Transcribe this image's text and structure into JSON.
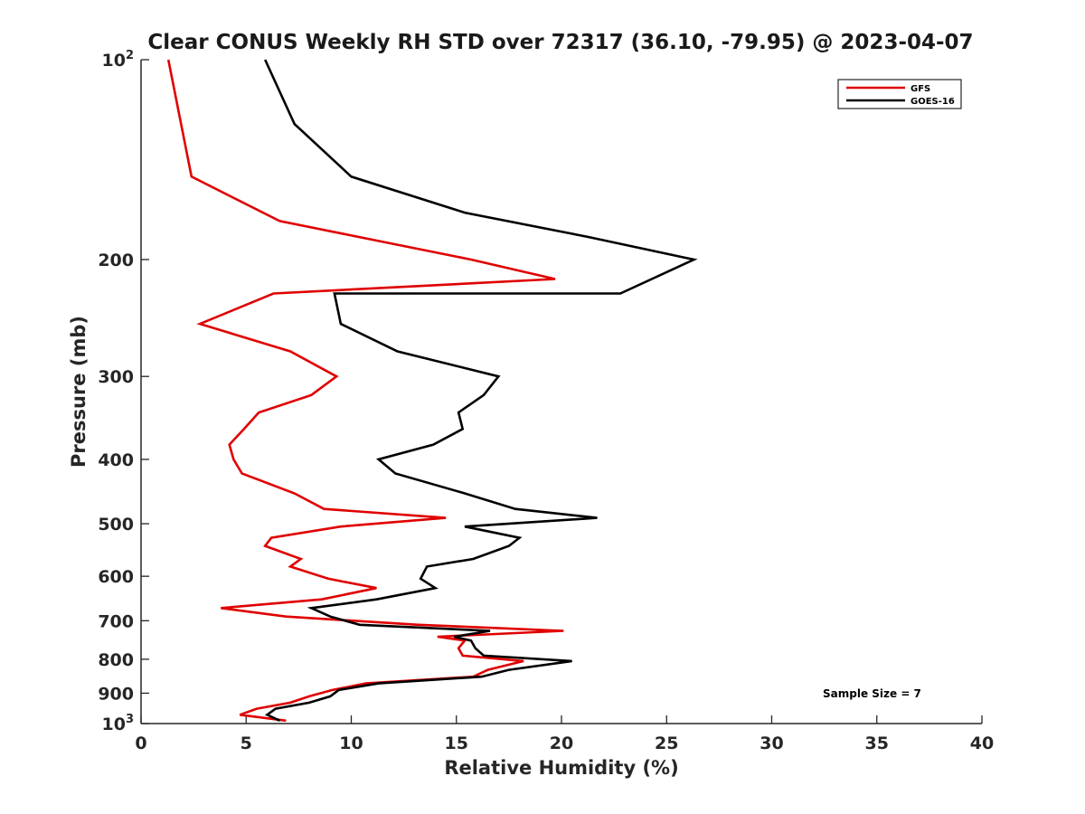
{
  "chart_data": {
    "type": "line",
    "title": "Clear CONUS Weekly RH STD over 72317 (36.10, -79.95) @ 2023-04-07",
    "xlabel": "Relative Humidity (%)",
    "ylabel": "Pressure (mb)",
    "xlim": [
      0,
      40
    ],
    "ylim": [
      1000,
      100
    ],
    "y_scale": "log",
    "y_reversed": true,
    "grid": false,
    "x_ticks": [
      "0",
      "5",
      "10",
      "15",
      "20",
      "25",
      "30",
      "35",
      "40"
    ],
    "y_ticks": [
      {
        "value": 100,
        "base": "10",
        "exp": "2"
      },
      {
        "value": 200,
        "label": "200"
      },
      {
        "value": 300,
        "label": "300"
      },
      {
        "value": 400,
        "label": "400"
      },
      {
        "value": 500,
        "label": "500"
      },
      {
        "value": 600,
        "label": "600"
      },
      {
        "value": 700,
        "label": "700"
      },
      {
        "value": 800,
        "label": "800"
      },
      {
        "value": 900,
        "label": "900"
      },
      {
        "value": 1000,
        "base": "10",
        "exp": "3"
      }
    ],
    "legend_position": "top-right",
    "annotation": "Sample Size = 7",
    "series": [
      {
        "name": "GFS",
        "color": "#e00000",
        "points": [
          [
            1.3,
            100
          ],
          [
            2.4,
            150
          ],
          [
            6.6,
            175
          ],
          [
            12.2,
            190
          ],
          [
            15.7,
            200
          ],
          [
            19.7,
            214
          ],
          [
            6.3,
            225
          ],
          [
            2.8,
            250
          ],
          [
            7.1,
            275
          ],
          [
            9.3,
            300
          ],
          [
            8.1,
            320
          ],
          [
            5.6,
            340
          ],
          [
            4.9,
            360
          ],
          [
            4.2,
            380
          ],
          [
            4.4,
            400
          ],
          [
            4.8,
            420
          ],
          [
            7.3,
            450
          ],
          [
            8.7,
            475
          ],
          [
            14.5,
            490
          ],
          [
            9.5,
            505
          ],
          [
            6.2,
            525
          ],
          [
            5.9,
            540
          ],
          [
            7.6,
            565
          ],
          [
            7.1,
            580
          ],
          [
            8.9,
            605
          ],
          [
            11.2,
            625
          ],
          [
            8.6,
            650
          ],
          [
            3.8,
            670
          ],
          [
            6.9,
            690
          ],
          [
            13.2,
            710
          ],
          [
            20.1,
            725
          ],
          [
            14.1,
            740
          ],
          [
            15.4,
            750
          ],
          [
            15.1,
            770
          ],
          [
            15.3,
            790
          ],
          [
            18.2,
            805
          ],
          [
            16.5,
            830
          ],
          [
            15.8,
            850
          ],
          [
            10.7,
            870
          ],
          [
            9.1,
            890
          ],
          [
            8.0,
            910
          ],
          [
            7.1,
            930
          ],
          [
            5.5,
            950
          ],
          [
            4.7,
            970
          ],
          [
            6.9,
            990
          ]
        ]
      },
      {
        "name": "GOES-16",
        "color": "#000000",
        "points": [
          [
            5.9,
            100
          ],
          [
            7.3,
            125
          ],
          [
            10.0,
            150
          ],
          [
            15.4,
            170
          ],
          [
            21.3,
            185
          ],
          [
            26.3,
            200
          ],
          [
            22.8,
            225
          ],
          [
            9.2,
            225
          ],
          [
            9.5,
            250
          ],
          [
            12.2,
            275
          ],
          [
            17.0,
            300
          ],
          [
            16.3,
            320
          ],
          [
            15.1,
            340
          ],
          [
            15.3,
            360
          ],
          [
            13.9,
            380
          ],
          [
            11.3,
            400
          ],
          [
            12.1,
            420
          ],
          [
            15.4,
            450
          ],
          [
            17.8,
            475
          ],
          [
            21.7,
            490
          ],
          [
            15.4,
            505
          ],
          [
            18.0,
            525
          ],
          [
            17.5,
            540
          ],
          [
            15.8,
            565
          ],
          [
            13.6,
            580
          ],
          [
            13.3,
            605
          ],
          [
            14.0,
            625
          ],
          [
            11.2,
            650
          ],
          [
            8.1,
            670
          ],
          [
            9.0,
            690
          ],
          [
            10.4,
            710
          ],
          [
            16.6,
            725
          ],
          [
            14.9,
            740
          ],
          [
            15.7,
            750
          ],
          [
            15.9,
            770
          ],
          [
            16.3,
            790
          ],
          [
            20.5,
            805
          ],
          [
            17.5,
            830
          ],
          [
            16.2,
            850
          ],
          [
            11.3,
            870
          ],
          [
            9.4,
            890
          ],
          [
            9.0,
            910
          ],
          [
            8.0,
            930
          ],
          [
            6.4,
            950
          ],
          [
            6.0,
            970
          ],
          [
            6.6,
            990
          ]
        ]
      }
    ]
  }
}
